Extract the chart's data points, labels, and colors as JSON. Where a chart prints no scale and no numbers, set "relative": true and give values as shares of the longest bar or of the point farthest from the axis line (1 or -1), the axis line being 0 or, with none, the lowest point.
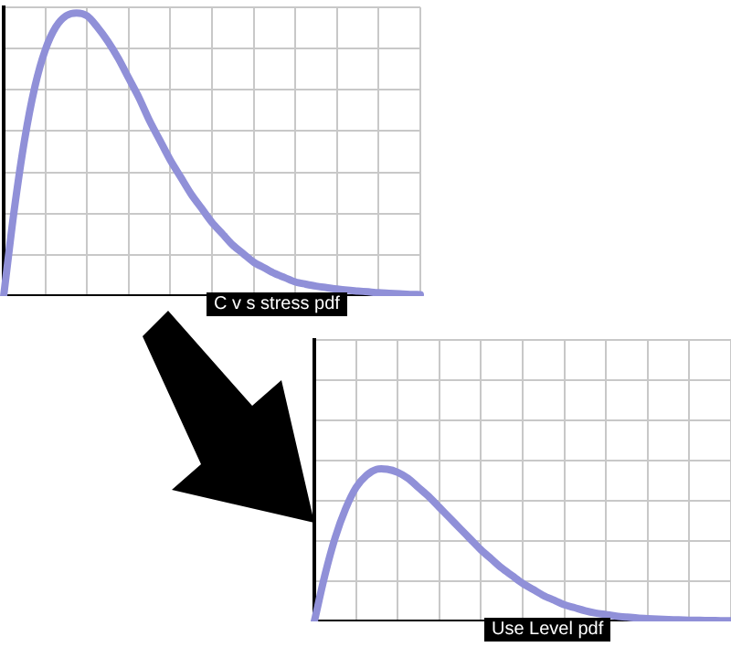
{
  "chart_data": [
    {
      "type": "line",
      "relative": true,
      "xlabel": "C v s stress pdf",
      "grid": true,
      "tick_labels": false,
      "color": "#9090d8",
      "categories": [
        null,
        null,
        null,
        null,
        null,
        null,
        null,
        null,
        null,
        null,
        null,
        null,
        null,
        null,
        null,
        null,
        null,
        null,
        null,
        null,
        null,
        null,
        null,
        null,
        null,
        null,
        null,
        null,
        null,
        null,
        null,
        null,
        null,
        null,
        null,
        null,
        null,
        null,
        null,
        null,
        null
      ],
      "values": [
        0,
        0.3,
        0.55,
        0.74,
        0.87,
        0.95,
        0.99,
        1.0,
        0.99,
        0.95,
        0.9,
        0.84,
        0.77,
        0.7,
        0.62,
        0.55,
        0.48,
        0.42,
        0.36,
        0.31,
        0.26,
        0.22,
        0.18,
        0.15,
        0.12,
        0.1,
        0.08,
        0.065,
        0.05,
        0.042,
        0.035,
        0.03,
        0.025,
        0.021,
        0.018,
        0.015,
        0.012,
        0.01,
        0.008,
        0.006,
        0.005
      ]
    },
    {
      "type": "line",
      "relative": true,
      "xlabel": "Use Level pdf",
      "grid": true,
      "tick_labels": false,
      "color": "#9090d8",
      "categories": [
        null,
        null,
        null,
        null,
        null,
        null,
        null,
        null,
        null,
        null,
        null,
        null,
        null,
        null,
        null,
        null,
        null,
        null,
        null,
        null,
        null,
        null,
        null,
        null,
        null,
        null,
        null,
        null,
        null,
        null,
        null,
        null,
        null,
        null,
        null,
        null,
        null,
        null,
        null,
        null,
        null
      ],
      "values": [
        0,
        0.3,
        0.55,
        0.74,
        0.88,
        0.96,
        1.0,
        1.0,
        0.98,
        0.94,
        0.88,
        0.82,
        0.75,
        0.68,
        0.61,
        0.54,
        0.47,
        0.41,
        0.35,
        0.3,
        0.25,
        0.21,
        0.17,
        0.14,
        0.11,
        0.09,
        0.07,
        0.055,
        0.045,
        0.035,
        0.028,
        0.022,
        0.018,
        0.015,
        0.012,
        0.01,
        0.008,
        0.007,
        0.006,
        0.005,
        0.004
      ]
    }
  ]
}
